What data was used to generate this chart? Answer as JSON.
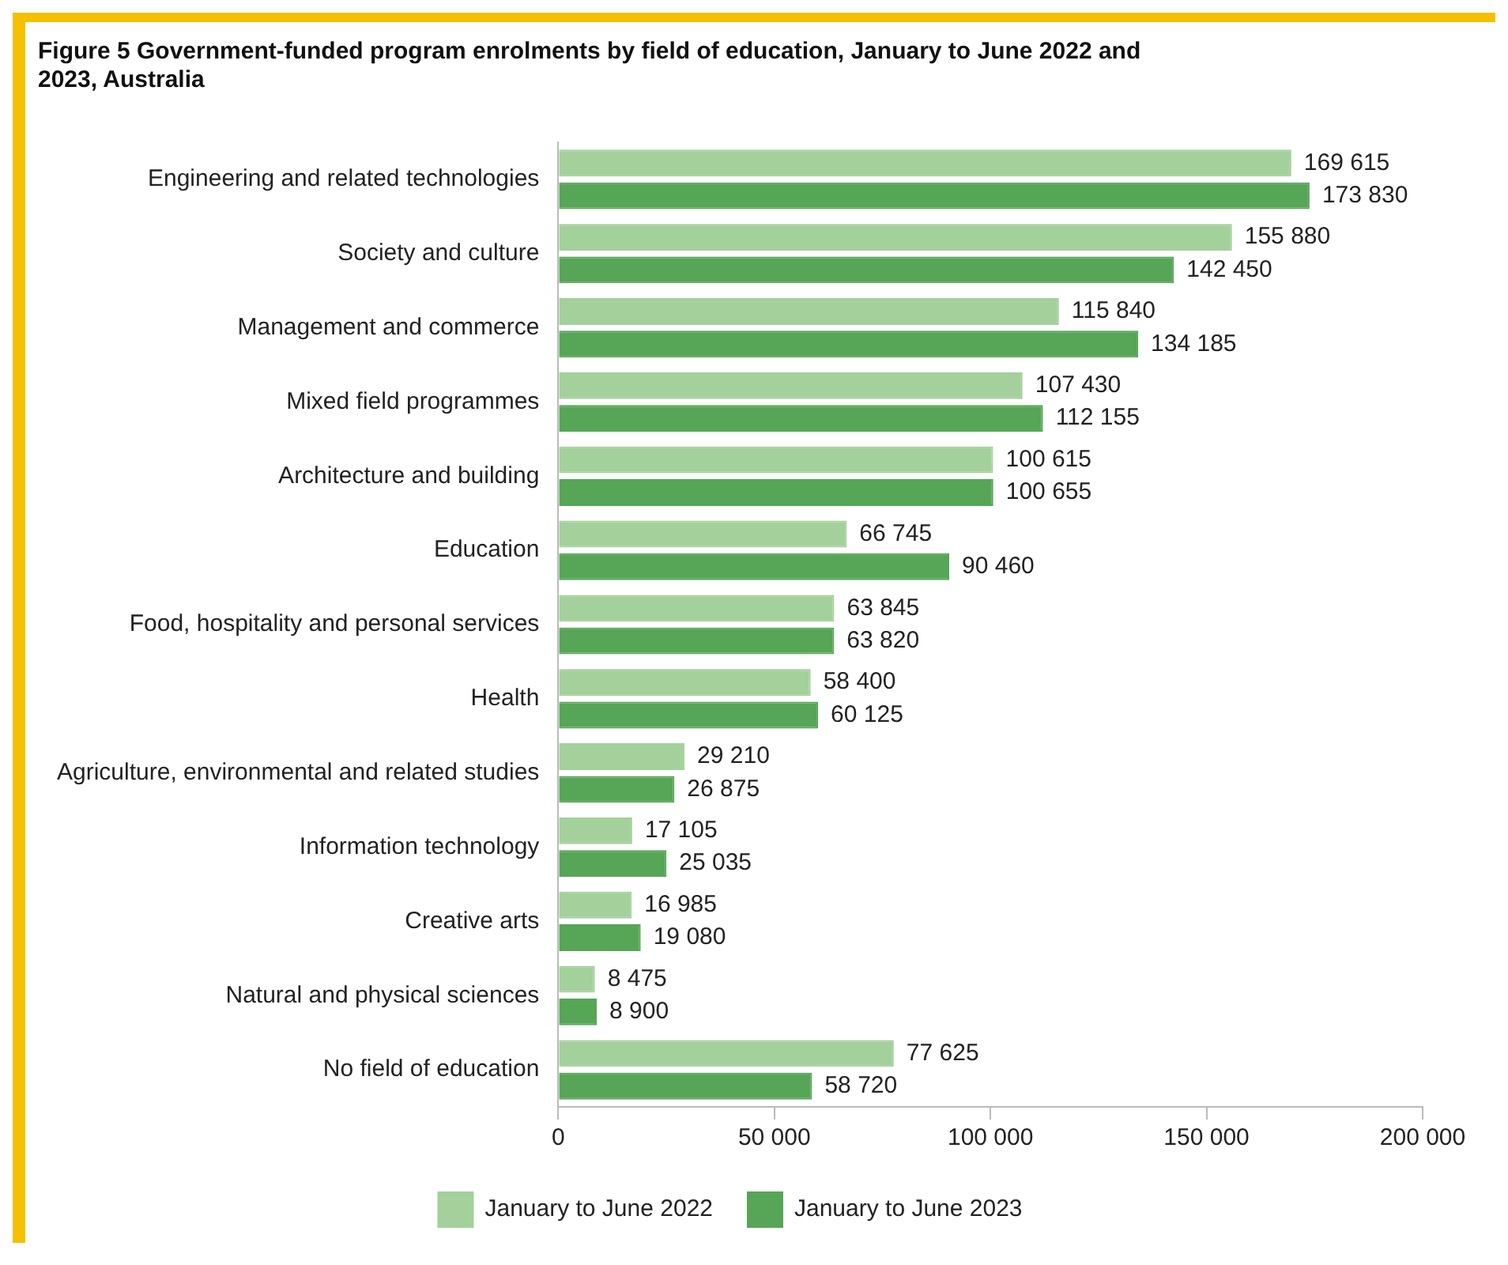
{
  "chart_data": {
    "type": "bar",
    "orientation": "horizontal",
    "title": "Figure 5 Government-funded program enrolments by field of education, January to June 2022 and 2023, Australia",
    "categories": [
      "Engineering and related technologies",
      "Society and culture",
      "Management and commerce",
      "Mixed field programmes",
      "Architecture and building",
      "Education",
      "Food, hospitality and personal services",
      "Health",
      "Agriculture, environmental and related studies",
      "Information technology",
      "Creative arts",
      "Natural and physical sciences",
      "No field of education"
    ],
    "series": [
      {
        "name": "January to June 2022",
        "color": "#a3d09b",
        "values": [
          169615,
          155880,
          115840,
          107430,
          100615,
          66745,
          63845,
          58400,
          29210,
          17105,
          16985,
          8475,
          77625
        ],
        "value_labels": [
          "169 615",
          "155 880",
          "115 840",
          "107 430",
          "100 615",
          "66 745",
          "63 845",
          "58 400",
          "29 210",
          "17 105",
          "16 985",
          "8 475",
          "77 625"
        ]
      },
      {
        "name": "January to June 2023",
        "color": "#57a557",
        "values": [
          173830,
          142450,
          134185,
          112155,
          100655,
          90460,
          63820,
          60125,
          26875,
          25035,
          19080,
          8900,
          58720
        ],
        "value_labels": [
          "173 830",
          "142 450",
          "134 185",
          "112 155",
          "100 655",
          "90 460",
          "63 820",
          "60 125",
          "26 875",
          "25 035",
          "19 080",
          "8 900",
          "58 720"
        ]
      }
    ],
    "xlim": [
      0,
      200000
    ],
    "xticks": [
      {
        "value": 0,
        "label": "0"
      },
      {
        "value": 50000,
        "label": "50 000"
      },
      {
        "value": 100000,
        "label": "100 000"
      },
      {
        "value": 150000,
        "label": "150 000"
      },
      {
        "value": 200000,
        "label": "200 000"
      }
    ],
    "grid": false,
    "legend": "bottom"
  }
}
